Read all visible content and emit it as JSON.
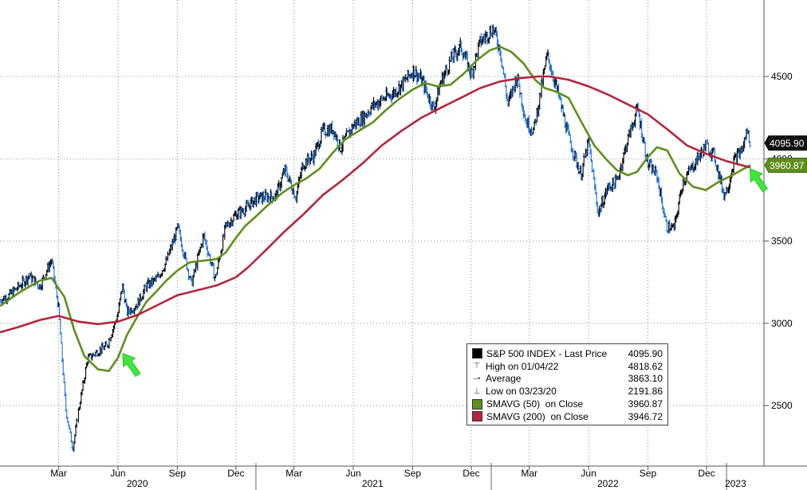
{
  "chart_data": {
    "type": "line",
    "title": "",
    "xlabel": "",
    "ylabel": "",
    "ylim": [
      2150,
      4900
    ],
    "y_ticks": [
      "2500",
      "3000",
      "3500",
      "4000",
      "4500"
    ],
    "x_ticks": [
      {
        "label": "Mar",
        "date": "2020-03-01"
      },
      {
        "label": "Jun",
        "date": "2020-06-01"
      },
      {
        "label": "Sep",
        "date": "2020-09-01"
      },
      {
        "label": "Dec",
        "date": "2020-12-01"
      },
      {
        "label": "Mar",
        "date": "2021-03-01"
      },
      {
        "label": "Jun",
        "date": "2021-06-01"
      },
      {
        "label": "Sep",
        "date": "2021-09-01"
      },
      {
        "label": "Dec",
        "date": "2021-12-01"
      },
      {
        "label": "Mar",
        "date": "2022-03-01"
      },
      {
        "label": "Jun",
        "date": "2022-06-01"
      },
      {
        "label": "Sep",
        "date": "2022-09-01"
      },
      {
        "label": "Dec",
        "date": "2022-12-01"
      }
    ],
    "year_labels": [
      {
        "label": "2020",
        "date": "2020-07-01"
      },
      {
        "label": "2021",
        "date": "2021-07-01"
      },
      {
        "label": "2022",
        "date": "2022-07-01"
      },
      {
        "label": "2023",
        "date": "2023-01-15"
      }
    ],
    "year_dividers": [
      "2021-01-01",
      "2022-01-01",
      "2023-01-01"
    ],
    "grid": true,
    "legend_position": "bottom-right",
    "series": [
      {
        "name": "S&P 500 INDEX - Last Price",
        "color": "#000000",
        "accent": "#1e6fd9",
        "points": [
          [
            "2019-12-01",
            3141
          ],
          [
            "2019-12-15",
            3168
          ],
          [
            "2020-01-01",
            3230
          ],
          [
            "2020-01-15",
            3289
          ],
          [
            "2020-02-01",
            3225
          ],
          [
            "2020-02-19",
            3386
          ],
          [
            "2020-03-01",
            3090
          ],
          [
            "2020-03-12",
            2480
          ],
          [
            "2020-03-23",
            2237
          ],
          [
            "2020-04-01",
            2470
          ],
          [
            "2020-04-15",
            2783
          ],
          [
            "2020-05-01",
            2830
          ],
          [
            "2020-05-15",
            2863
          ],
          [
            "2020-06-01",
            3055
          ],
          [
            "2020-06-08",
            3232
          ],
          [
            "2020-06-15",
            3066
          ],
          [
            "2020-07-01",
            3115
          ],
          [
            "2020-07-15",
            3226
          ],
          [
            "2020-08-01",
            3271
          ],
          [
            "2020-08-15",
            3373
          ],
          [
            "2020-09-02",
            3580
          ],
          [
            "2020-09-23",
            3237
          ],
          [
            "2020-10-12",
            3535
          ],
          [
            "2020-10-30",
            3270
          ],
          [
            "2020-11-15",
            3585
          ],
          [
            "2020-12-01",
            3662
          ],
          [
            "2020-12-15",
            3695
          ],
          [
            "2021-01-01",
            3756
          ],
          [
            "2021-01-15",
            3768
          ],
          [
            "2021-02-01",
            3773
          ],
          [
            "2021-02-15",
            3934
          ],
          [
            "2021-03-04",
            3768
          ],
          [
            "2021-03-15",
            3968
          ],
          [
            "2021-04-01",
            4019
          ],
          [
            "2021-04-15",
            4170
          ],
          [
            "2021-05-01",
            4181
          ],
          [
            "2021-05-12",
            4063
          ],
          [
            "2021-06-01",
            4202
          ],
          [
            "2021-06-15",
            4246
          ],
          [
            "2021-07-01",
            4320
          ],
          [
            "2021-07-15",
            4360
          ],
          [
            "2021-08-01",
            4395
          ],
          [
            "2021-08-15",
            4448
          ],
          [
            "2021-09-02",
            4537
          ],
          [
            "2021-09-15",
            4480
          ],
          [
            "2021-10-04",
            4300
          ],
          [
            "2021-10-15",
            4471
          ],
          [
            "2021-11-01",
            4613
          ],
          [
            "2021-11-15",
            4682
          ],
          [
            "2021-12-01",
            4513
          ],
          [
            "2021-12-15",
            4709
          ],
          [
            "2022-01-04",
            4793
          ],
          [
            "2022-01-15",
            4662
          ],
          [
            "2022-01-27",
            4327
          ],
          [
            "2022-02-10",
            4504
          ],
          [
            "2022-02-24",
            4225
          ],
          [
            "2022-03-08",
            4170
          ],
          [
            "2022-03-29",
            4631
          ],
          [
            "2022-04-15",
            4392
          ],
          [
            "2022-05-01",
            4132
          ],
          [
            "2022-05-20",
            3901
          ],
          [
            "2022-06-01",
            4101
          ],
          [
            "2022-06-16",
            3666
          ],
          [
            "2022-07-01",
            3825
          ],
          [
            "2022-07-15",
            3863
          ],
          [
            "2022-08-01",
            4119
          ],
          [
            "2022-08-16",
            4305
          ],
          [
            "2022-09-01",
            3966
          ],
          [
            "2022-09-15",
            3901
          ],
          [
            "2022-09-30",
            3586
          ],
          [
            "2022-10-12",
            3577
          ],
          [
            "2022-10-25",
            3859
          ],
          [
            "2022-11-10",
            3956
          ],
          [
            "2022-11-30",
            4080
          ],
          [
            "2022-12-13",
            4019
          ],
          [
            "2022-12-28",
            3783
          ],
          [
            "2023-01-03",
            3824
          ],
          [
            "2023-01-12",
            3983
          ],
          [
            "2023-01-27",
            4070
          ],
          [
            "2023-02-02",
            4179
          ],
          [
            "2023-02-07",
            4095.9
          ]
        ]
      },
      {
        "name": "SMAVG (50)  on Close",
        "color": "#5f8f1c",
        "points": [
          [
            "2019-12-01",
            3105
          ],
          [
            "2020-01-01",
            3190
          ],
          [
            "2020-02-01",
            3260
          ],
          [
            "2020-02-19",
            3276
          ],
          [
            "2020-03-10",
            3160
          ],
          [
            "2020-03-25",
            2960
          ],
          [
            "2020-04-10",
            2800
          ],
          [
            "2020-05-01",
            2720
          ],
          [
            "2020-05-18",
            2710
          ],
          [
            "2020-06-01",
            2790
          ],
          [
            "2020-06-15",
            2930
          ],
          [
            "2020-07-01",
            3040
          ],
          [
            "2020-07-15",
            3130
          ],
          [
            "2020-08-01",
            3200
          ],
          [
            "2020-08-15",
            3260
          ],
          [
            "2020-09-01",
            3320
          ],
          [
            "2020-09-20",
            3370
          ],
          [
            "2020-10-10",
            3380
          ],
          [
            "2020-11-01",
            3390
          ],
          [
            "2020-11-15",
            3430
          ],
          [
            "2020-12-01",
            3520
          ],
          [
            "2020-12-15",
            3590
          ],
          [
            "2021-01-01",
            3650
          ],
          [
            "2021-01-20",
            3720
          ],
          [
            "2021-02-10",
            3790
          ],
          [
            "2021-03-01",
            3840
          ],
          [
            "2021-03-20",
            3880
          ],
          [
            "2021-04-10",
            3940
          ],
          [
            "2021-05-01",
            4040
          ],
          [
            "2021-05-20",
            4120
          ],
          [
            "2021-06-10",
            4170
          ],
          [
            "2021-07-01",
            4220
          ],
          [
            "2021-07-20",
            4290
          ],
          [
            "2021-08-10",
            4360
          ],
          [
            "2021-09-01",
            4420
          ],
          [
            "2021-09-20",
            4460
          ],
          [
            "2021-10-10",
            4440
          ],
          [
            "2021-10-30",
            4450
          ],
          [
            "2021-11-20",
            4520
          ],
          [
            "2021-12-10",
            4600
          ],
          [
            "2021-12-30",
            4660
          ],
          [
            "2022-01-15",
            4680
          ],
          [
            "2022-02-01",
            4650
          ],
          [
            "2022-02-20",
            4580
          ],
          [
            "2022-03-10",
            4480
          ],
          [
            "2022-03-25",
            4430
          ],
          [
            "2022-04-10",
            4410
          ],
          [
            "2022-05-01",
            4370
          ],
          [
            "2022-05-20",
            4230
          ],
          [
            "2022-06-10",
            4080
          ],
          [
            "2022-06-30",
            3990
          ],
          [
            "2022-07-15",
            3930
          ],
          [
            "2022-08-01",
            3900
          ],
          [
            "2022-08-15",
            3920
          ],
          [
            "2022-09-01",
            4010
          ],
          [
            "2022-09-15",
            4070
          ],
          [
            "2022-10-01",
            4050
          ],
          [
            "2022-10-20",
            3910
          ],
          [
            "2022-11-10",
            3830
          ],
          [
            "2022-11-30",
            3810
          ],
          [
            "2022-12-20",
            3860
          ],
          [
            "2023-01-10",
            3900
          ],
          [
            "2023-02-07",
            3960.87
          ]
        ]
      },
      {
        "name": "SMAVG (200)  on Close",
        "color": "#b5253b",
        "points": [
          [
            "2019-12-01",
            2945
          ],
          [
            "2020-01-01",
            2980
          ],
          [
            "2020-02-01",
            3020
          ],
          [
            "2020-03-01",
            3045
          ],
          [
            "2020-04-01",
            3010
          ],
          [
            "2020-05-01",
            2995
          ],
          [
            "2020-06-01",
            3010
          ],
          [
            "2020-07-01",
            3050
          ],
          [
            "2020-08-01",
            3110
          ],
          [
            "2020-09-01",
            3170
          ],
          [
            "2020-10-01",
            3200
          ],
          [
            "2020-11-01",
            3230
          ],
          [
            "2020-12-01",
            3280
          ],
          [
            "2020-12-20",
            3340
          ],
          [
            "2021-01-15",
            3440
          ],
          [
            "2021-02-15",
            3560
          ],
          [
            "2021-03-15",
            3660
          ],
          [
            "2021-04-15",
            3780
          ],
          [
            "2021-05-15",
            3870
          ],
          [
            "2021-06-15",
            3970
          ],
          [
            "2021-07-15",
            4080
          ],
          [
            "2021-08-15",
            4170
          ],
          [
            "2021-09-15",
            4250
          ],
          [
            "2021-10-15",
            4310
          ],
          [
            "2021-11-15",
            4370
          ],
          [
            "2021-12-15",
            4430
          ],
          [
            "2022-01-15",
            4470
          ],
          [
            "2022-02-15",
            4490
          ],
          [
            "2022-03-15",
            4500
          ],
          [
            "2022-04-01",
            4500
          ],
          [
            "2022-05-01",
            4480
          ],
          [
            "2022-06-01",
            4440
          ],
          [
            "2022-07-01",
            4390
          ],
          [
            "2022-08-01",
            4330
          ],
          [
            "2022-09-01",
            4270
          ],
          [
            "2022-10-01",
            4180
          ],
          [
            "2022-11-01",
            4080
          ],
          [
            "2022-12-01",
            4030
          ],
          [
            "2023-01-01",
            3985
          ],
          [
            "2023-02-07",
            3946.72
          ]
        ]
      }
    ],
    "last_price_badge": "4095.90",
    "sma50_badge": "3960.87",
    "crossover_markers": [
      "2020-06-05",
      "2023-02-03"
    ]
  },
  "legend": {
    "rows": [
      {
        "label": "S&P 500 INDEX - Last Price",
        "value": "4095.90",
        "marker": "square",
        "color": "#000000"
      },
      {
        "label": "High on 01/04/22",
        "value": "4818.62",
        "marker": "high-tick",
        "color": "#666666"
      },
      {
        "label": "Average",
        "value": "3863.10",
        "marker": "avg-dot",
        "color": "#666666"
      },
      {
        "label": "Low on 03/23/20",
        "value": "2191.86",
        "marker": "low-tick",
        "color": "#666666"
      },
      {
        "label": "SMAVG (50)  on Close",
        "value": "3960.87",
        "marker": "square",
        "color": "#5f8f1c"
      },
      {
        "label": "SMAVG (200)  on Close",
        "value": "3946.72",
        "marker": "square",
        "color": "#b5253b"
      }
    ]
  }
}
